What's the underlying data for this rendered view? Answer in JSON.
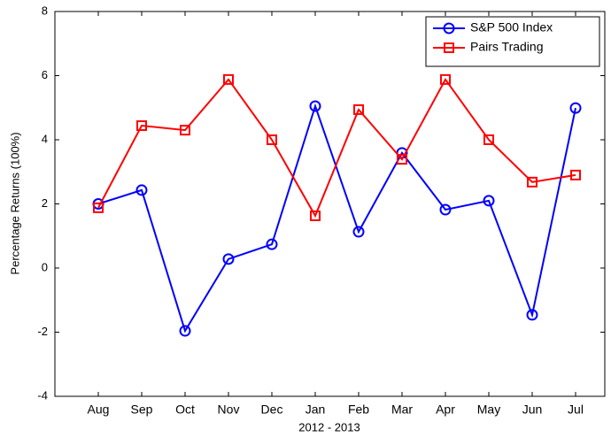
{
  "chart_data": {
    "type": "line",
    "x_label": "2012 - 2013",
    "y_label": "Percentage Returns (100%)",
    "categories": [
      "Aug",
      "Sep",
      "Oct",
      "Nov",
      "Dec",
      "Jan",
      "Feb",
      "Mar",
      "Apr",
      "May",
      "Jun",
      "Jul"
    ],
    "series": [
      {
        "name": "S&P 500 Index",
        "color": "#0000ff",
        "marker": "circle",
        "values": [
          2.0,
          2.43,
          -1.96,
          0.28,
          0.74,
          5.05,
          1.13,
          3.59,
          1.82,
          2.1,
          -1.46,
          4.99
        ]
      },
      {
        "name": "Pairs Trading",
        "color": "#ff0000",
        "marker": "square",
        "values": [
          1.88,
          4.44,
          4.3,
          5.88,
          4.0,
          1.63,
          4.94,
          3.39,
          5.88,
          4.0,
          2.68,
          2.9
        ]
      }
    ],
    "ylim": [
      -4,
      8
    ],
    "yticks": [
      -4,
      -2,
      0,
      2,
      4,
      6,
      8
    ],
    "grid": false,
    "legend": "northeast"
  }
}
